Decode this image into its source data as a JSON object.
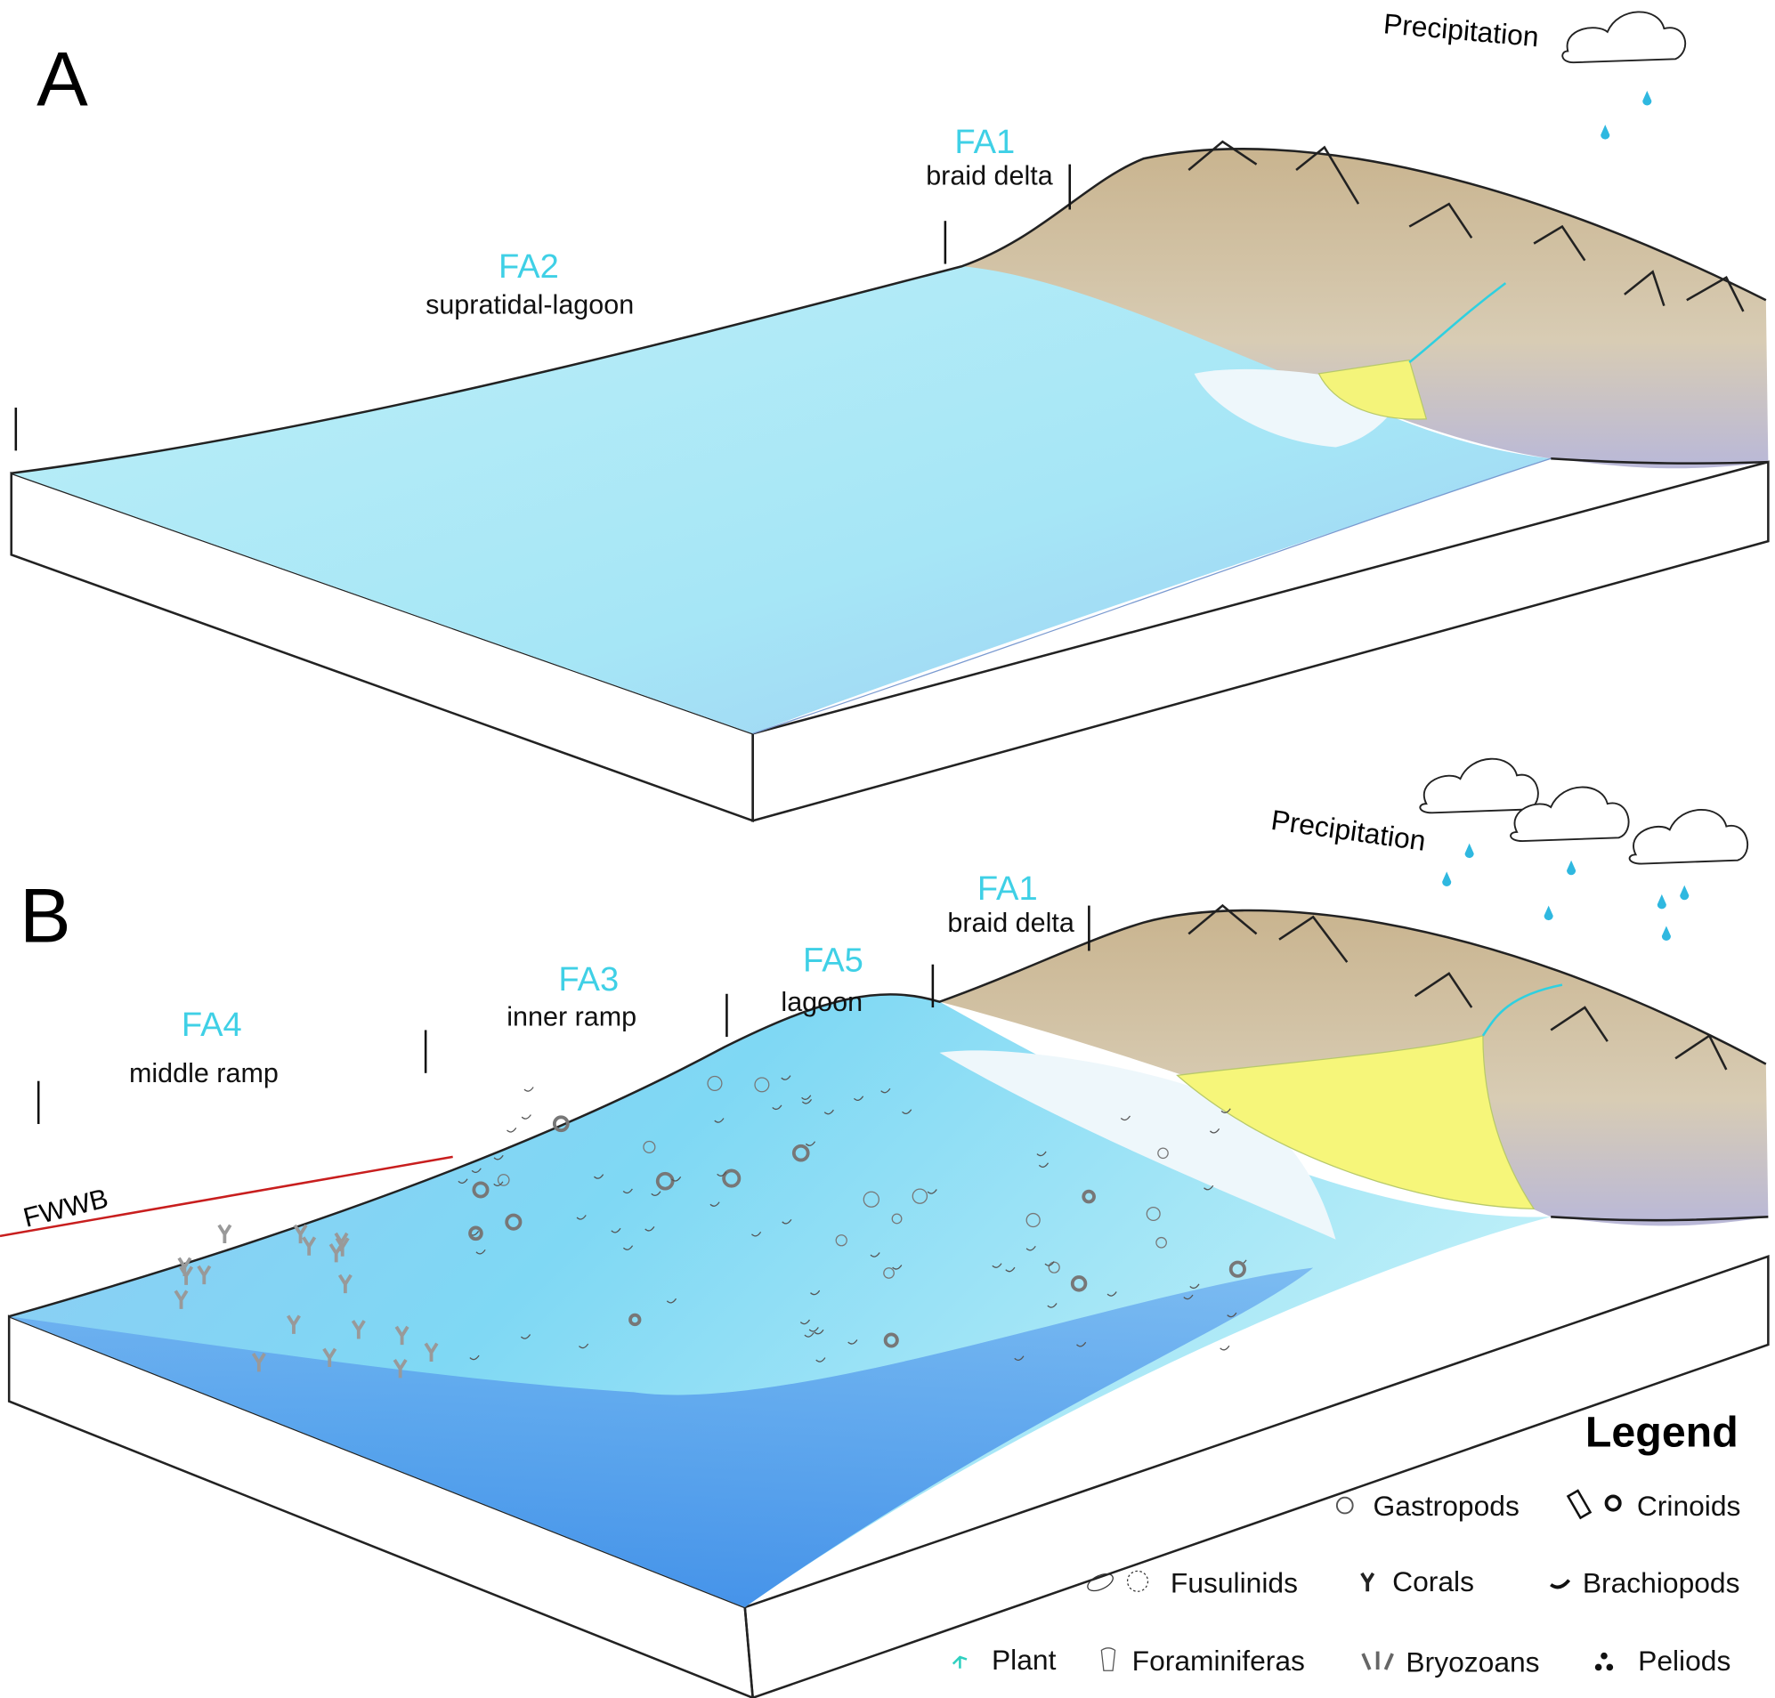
{
  "panels": [
    {
      "label": "A",
      "precipitation": "Precipitation",
      "zones": [
        {
          "code": "FA1",
          "name": "braid delta"
        },
        {
          "code": "FA2",
          "name": "supratidal-lagoon"
        }
      ]
    },
    {
      "label": "B",
      "precipitation": "Precipitation",
      "zones": [
        {
          "code": "FA1",
          "name": "braid delta"
        },
        {
          "code": "FA5",
          "name": "lagoon"
        },
        {
          "code": "FA3",
          "name": "inner ramp"
        },
        {
          "code": "FA4",
          "name": "middle ramp"
        }
      ],
      "fwwb": "FWWB"
    }
  ],
  "legend": {
    "title": "Legend",
    "items": [
      "Gastropods",
      "Crinoids",
      "Fusulinids",
      "Corals",
      "Brachiopods",
      "Plant",
      "Foraminiferas",
      "Bryozoans",
      "Peliods"
    ]
  }
}
